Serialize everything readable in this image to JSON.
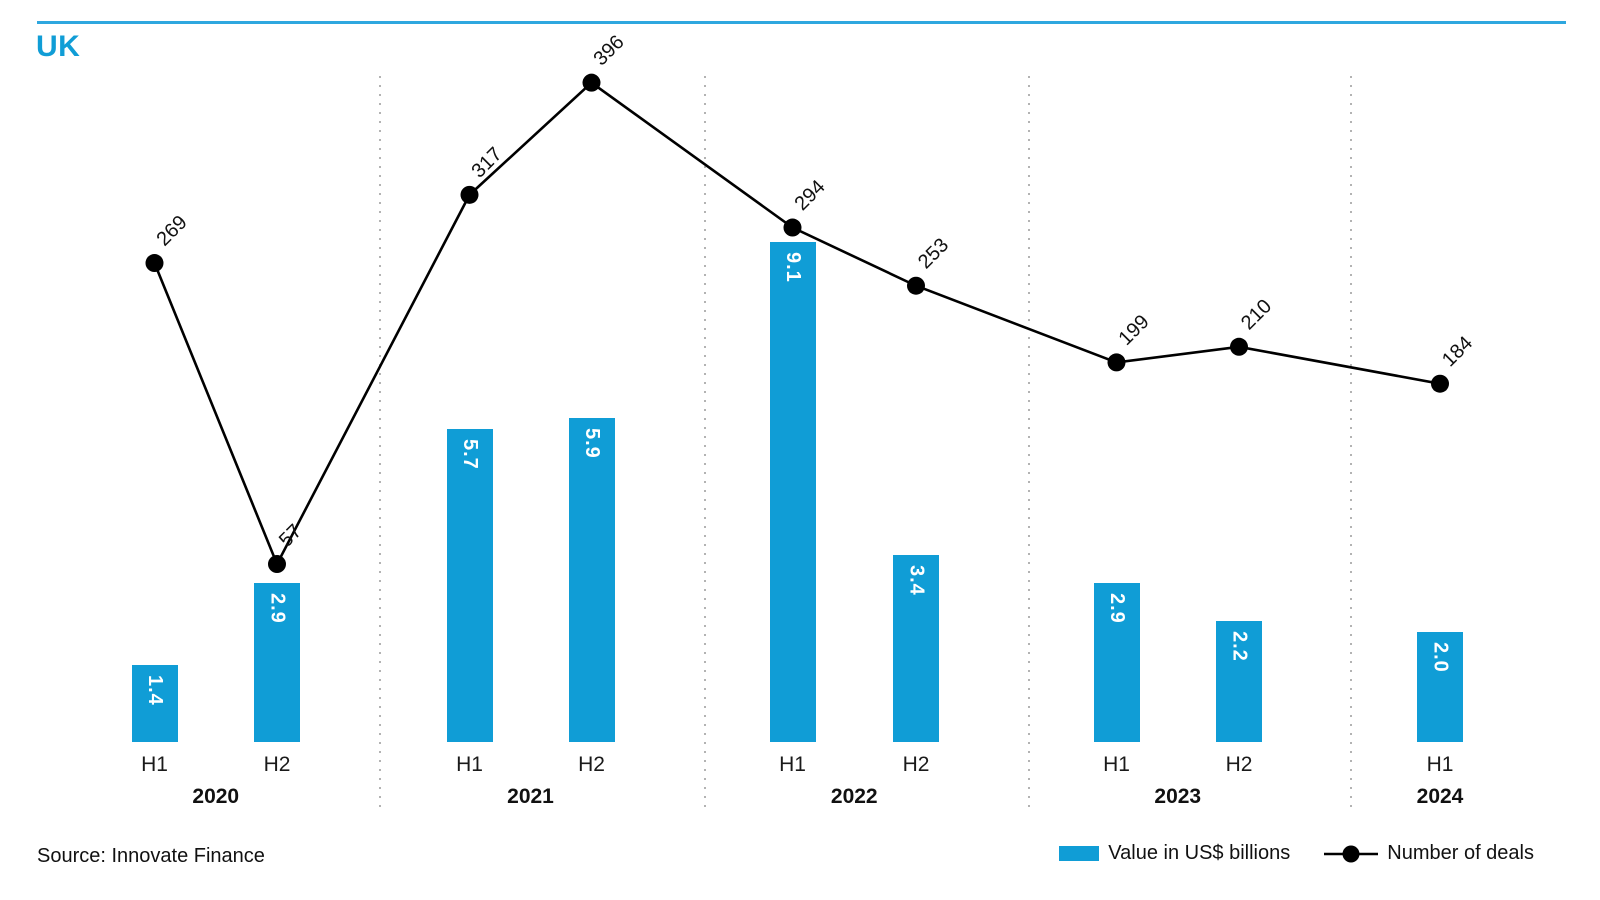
{
  "title": "UK",
  "source": "Source: Innovate Finance",
  "colors": {
    "accent": "#109DD6",
    "rule": "#2EA7DF",
    "line": "#000000",
    "separator": "#B3B3B3",
    "bar_label_text": "#FFFFFF",
    "text": "#111111"
  },
  "legend": {
    "bar_label": "Value in US$ billions",
    "line_label": "Number of deals"
  },
  "chart_data": {
    "type": "combo bar+line",
    "title": "UK",
    "categories": [
      {
        "year": "2020",
        "half": "H1"
      },
      {
        "year": "2020",
        "half": "H2"
      },
      {
        "year": "2021",
        "half": "H1"
      },
      {
        "year": "2021",
        "half": "H2"
      },
      {
        "year": "2022",
        "half": "H1"
      },
      {
        "year": "2022",
        "half": "H2"
      },
      {
        "year": "2023",
        "half": "H1"
      },
      {
        "year": "2023",
        "half": "H2"
      },
      {
        "year": "2024",
        "half": "H1"
      }
    ],
    "year_groups": [
      "2020",
      "2021",
      "2022",
      "2023",
      "2024"
    ],
    "series": [
      {
        "name": "Value in US$ billions",
        "type": "bar",
        "values": [
          1.4,
          2.9,
          5.7,
          5.9,
          9.1,
          3.4,
          2.9,
          2.2,
          2.0
        ],
        "value_label_decimals": 1,
        "labels_inside_bar_rotated_deg": 90
      },
      {
        "name": "Number of deals",
        "type": "line",
        "values": [
          269,
          57,
          317,
          396,
          294,
          253,
          199,
          210,
          184
        ],
        "point_labels_rotated_deg": -45
      }
    ],
    "grid": "dotted vertical separators between year groups",
    "axes": "no visible y-axis; category x-axis with half-year and year labels",
    "legend_position": "bottom-right"
  }
}
